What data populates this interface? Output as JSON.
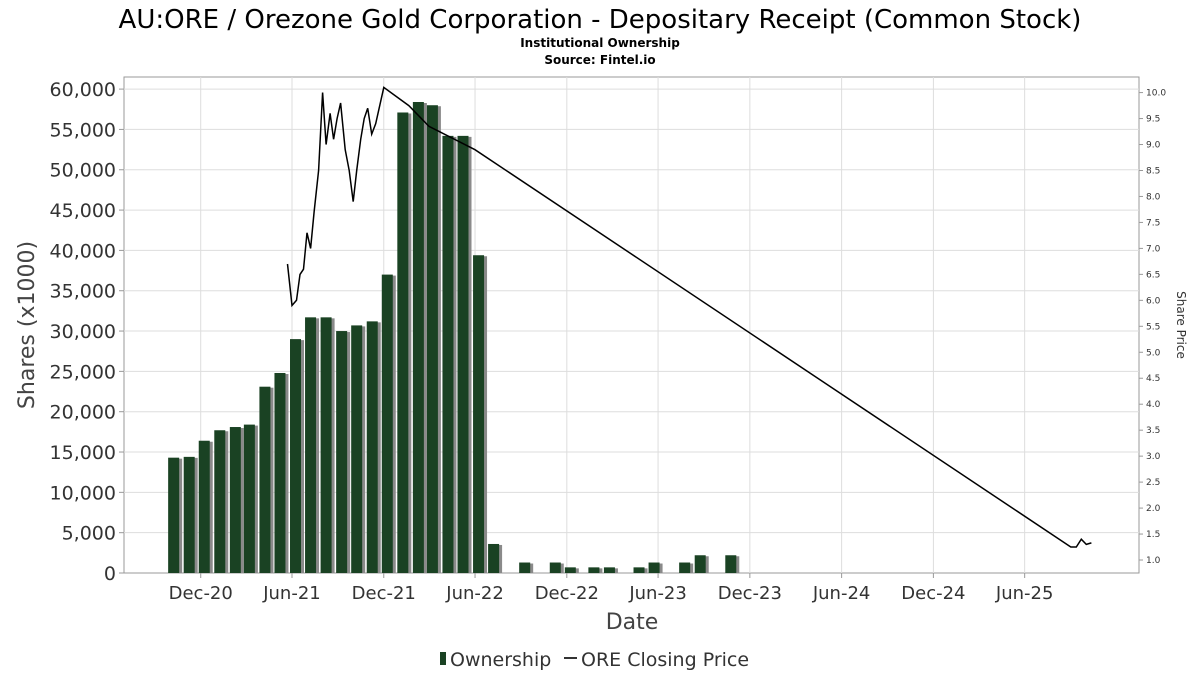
{
  "chart_data": {
    "type": "bar",
    "title": "AU:ORE / Orezone Gold Corporation - Depositary Receipt (Common Stock)",
    "subtitle": "Institutional Ownership",
    "source": "Source: Fintel.io",
    "xlabel": "Date",
    "ylabel": "Shares (x1000)",
    "y2label": "Share Price",
    "ylim": [
      0,
      61500
    ],
    "y2lim": [
      0.75,
      10.3
    ],
    "yticks": [
      0,
      5000,
      10000,
      15000,
      20000,
      25000,
      30000,
      35000,
      40000,
      45000,
      50000,
      55000,
      60000
    ],
    "ytick_labels": [
      "0",
      "5,000",
      "10,000",
      "15,000",
      "20,000",
      "25,000",
      "30,000",
      "35,000",
      "40,000",
      "45,000",
      "50,000",
      "55,000",
      "60,000"
    ],
    "y2ticks": [
      1.0,
      1.5,
      2.0,
      2.5,
      3.0,
      3.5,
      4.0,
      4.5,
      5.0,
      5.5,
      6.0,
      6.5,
      7.0,
      7.5,
      8.0,
      8.5,
      9.0,
      9.5,
      10.0
    ],
    "y2tick_labels": [
      "1.0",
      "1.5",
      "2.0",
      "2.5",
      "3.0",
      "3.5",
      "4.0",
      "4.5",
      "5.0",
      "5.5",
      "6.0",
      "6.5",
      "7.0",
      "7.5",
      "8.0",
      "8.5",
      "9.0",
      "9.5",
      "10.0"
    ],
    "xlim": [
      "2020-07-01",
      "2026-01-15"
    ],
    "xticks": [
      "2020-12-01",
      "2021-06-01",
      "2021-12-01",
      "2022-06-01",
      "2022-12-01",
      "2023-06-01",
      "2023-12-01",
      "2024-06-01",
      "2024-12-01",
      "2025-06-01"
    ],
    "xtick_labels": [
      "Dec-20",
      "Jun-21",
      "Dec-21",
      "Jun-22",
      "Dec-22",
      "Jun-23",
      "Dec-23",
      "Jun-24",
      "Dec-24",
      "Jun-25"
    ],
    "grid": true,
    "legend_position": "bottom",
    "colors": {
      "bar": "#1a4223",
      "bar_shadow": "#8a8a8a",
      "line": "#000000",
      "grid": "#dddddd"
    },
    "series": [
      {
        "name": "Ownership",
        "type": "bar",
        "axis": "left",
        "points": [
          [
            "2020-10-08",
            14300
          ],
          [
            "2020-11-08",
            14400
          ],
          [
            "2020-12-08",
            16400
          ],
          [
            "2021-01-08",
            17700
          ],
          [
            "2021-02-08",
            18100
          ],
          [
            "2021-03-08",
            18400
          ],
          [
            "2021-04-08",
            23100
          ],
          [
            "2021-05-08",
            24800
          ],
          [
            "2021-06-08",
            29000
          ],
          [
            "2021-07-08",
            31700
          ],
          [
            "2021-08-08",
            31700
          ],
          [
            "2021-09-08",
            30000
          ],
          [
            "2021-10-08",
            30700
          ],
          [
            "2021-11-08",
            31200
          ],
          [
            "2021-12-08",
            37000
          ],
          [
            "2022-01-08",
            57100
          ],
          [
            "2022-02-08",
            58400
          ],
          [
            "2022-03-08",
            58000
          ],
          [
            "2022-04-08",
            54200
          ],
          [
            "2022-05-08",
            54200
          ],
          [
            "2022-06-08",
            39400
          ],
          [
            "2022-07-08",
            3600
          ],
          [
            "2022-09-08",
            1300
          ],
          [
            "2022-11-08",
            1300
          ],
          [
            "2022-12-08",
            700
          ],
          [
            "2023-01-24",
            700
          ],
          [
            "2023-02-24",
            700
          ],
          [
            "2023-04-24",
            700
          ],
          [
            "2023-05-24",
            1300
          ],
          [
            "2023-07-24",
            1300
          ],
          [
            "2023-08-24",
            2200
          ],
          [
            "2023-10-24",
            2200
          ]
        ]
      },
      {
        "name": "ORE Closing Price",
        "type": "line",
        "axis": "right",
        "points": [
          [
            "2021-05-23",
            6.7
          ],
          [
            "2021-06-01",
            5.9
          ],
          [
            "2021-06-10",
            6.0
          ],
          [
            "2021-06-17",
            6.5
          ],
          [
            "2021-06-24",
            6.6
          ],
          [
            "2021-07-01",
            7.3
          ],
          [
            "2021-07-08",
            7.0
          ],
          [
            "2021-07-15",
            7.7
          ],
          [
            "2021-07-24",
            8.5
          ],
          [
            "2021-08-01",
            10.0
          ],
          [
            "2021-08-08",
            9.0
          ],
          [
            "2021-08-16",
            9.6
          ],
          [
            "2021-08-23",
            9.1
          ],
          [
            "2021-08-30",
            9.5
          ],
          [
            "2021-09-06",
            9.8
          ],
          [
            "2021-09-15",
            8.9
          ],
          [
            "2021-09-23",
            8.5
          ],
          [
            "2021-10-01",
            7.9
          ],
          [
            "2021-10-08",
            8.5
          ],
          [
            "2021-10-16",
            9.1
          ],
          [
            "2021-10-23",
            9.5
          ],
          [
            "2021-10-30",
            9.7
          ],
          [
            "2021-11-07",
            9.2
          ],
          [
            "2021-11-15",
            9.4
          ],
          [
            "2021-12-01",
            10.1
          ],
          [
            "2022-01-20",
            9.75
          ],
          [
            "2022-03-01",
            9.35
          ],
          [
            "2022-06-01",
            8.9
          ],
          [
            "2025-09-01",
            1.25
          ],
          [
            "2025-09-12",
            1.25
          ],
          [
            "2025-09-22",
            1.4
          ],
          [
            "2025-10-02",
            1.3
          ],
          [
            "2025-10-12",
            1.33
          ]
        ]
      }
    ]
  }
}
